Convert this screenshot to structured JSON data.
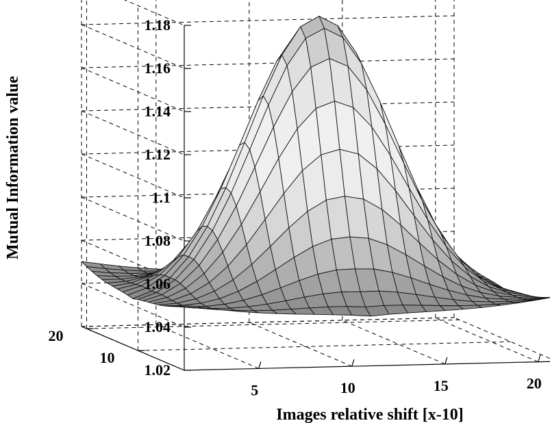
{
  "chart_data": {
    "type": "surface",
    "xlabel": "Images relative shift [x-10]",
    "ylabel": "Mutual Information value",
    "x_ticks": [
      "5",
      "10",
      "15",
      "20"
    ],
    "y_ticks": [
      "10",
      "20"
    ],
    "z_ticks": [
      "1.02",
      "1.04",
      "1.06",
      "1.08",
      "1.1",
      "1.12",
      "1.14",
      "1.16",
      "1.18"
    ],
    "xlim": [
      1,
      21
    ],
    "ylim": [
      1,
      21
    ],
    "zlim": [
      1.02,
      1.18
    ],
    "grid": true,
    "colormap": "gray",
    "surface": {
      "x_range": [
        1,
        21
      ],
      "y_range": [
        1,
        21
      ],
      "grid_size": 21,
      "peak": {
        "x": 11,
        "y": 11,
        "z": 1.172
      },
      "baseline_z": 1.035,
      "edge_z": 1.05
    }
  }
}
